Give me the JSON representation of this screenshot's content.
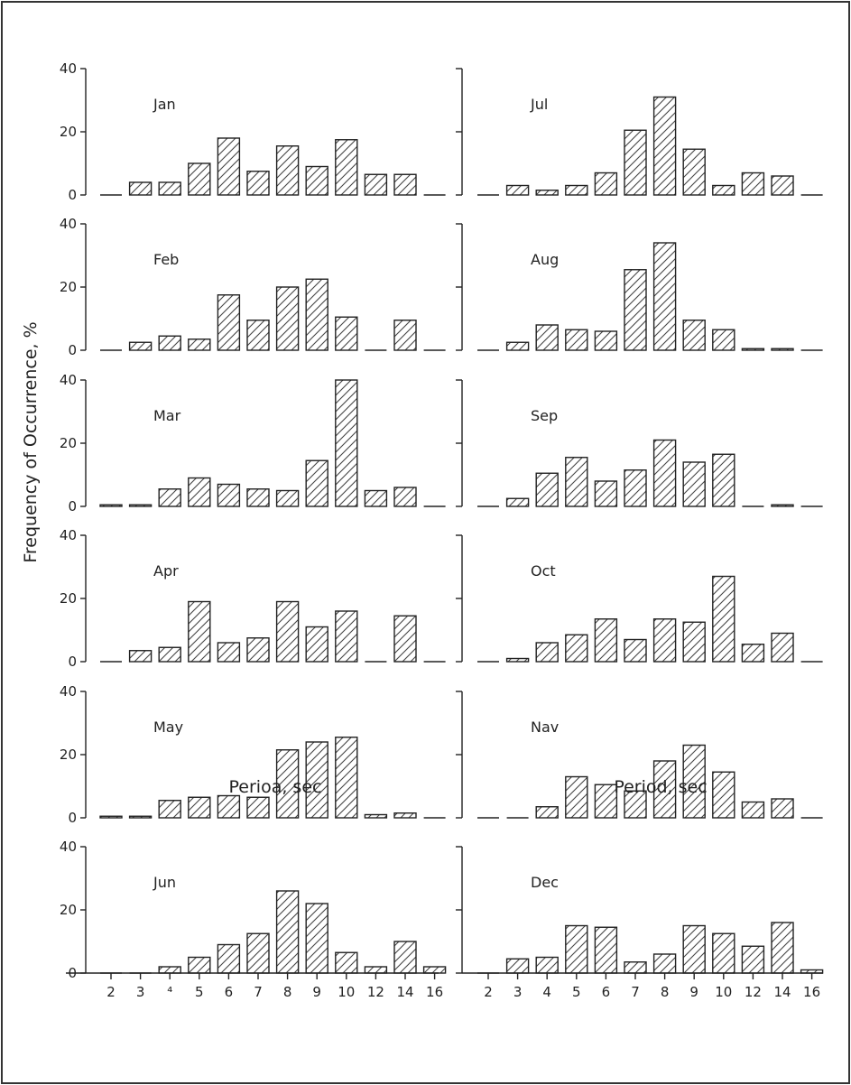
{
  "chart_data": {
    "type": "bar",
    "ylabel": "Frequency of Occurrence, %",
    "xlabels": [
      "Perioa, sec",
      "Period, sec"
    ],
    "ylim": [
      0,
      40
    ],
    "yticks": [
      "0",
      "20",
      "40"
    ],
    "categories": [
      "2",
      "3",
      "4",
      "5",
      "6",
      "7",
      "8",
      "9",
      "10",
      "12",
      "14",
      "16"
    ],
    "left_categories": [
      "2",
      "3",
      "⁴",
      "5",
      "6",
      "7",
      "8",
      "9",
      "10",
      "12",
      "14",
      "16"
    ],
    "right_categories": [
      "2",
      "3",
      "4",
      "5",
      "6",
      "7",
      "8",
      "9",
      "10",
      "12",
      "14",
      "16"
    ],
    "grid": false,
    "panels": [
      {
        "month": "Jan",
        "values": [
          0,
          4,
          4,
          10,
          18,
          7.5,
          15.5,
          9,
          17.5,
          6.5,
          6.5,
          0
        ]
      },
      {
        "month": "Jul",
        "values": [
          0,
          3,
          1.5,
          3,
          7,
          20.5,
          31,
          14.5,
          3,
          7,
          6,
          0
        ]
      },
      {
        "month": "Feb",
        "values": [
          0,
          2.5,
          4.5,
          3.5,
          17.5,
          9.5,
          20,
          22.5,
          10.5,
          0,
          9.5,
          0
        ]
      },
      {
        "month": "Aug",
        "values": [
          0,
          2.5,
          8,
          6.5,
          6,
          25.5,
          34,
          9.5,
          6.5,
          0.5,
          0.5,
          0
        ]
      },
      {
        "month": "Mar",
        "values": [
          0.5,
          0.5,
          5.5,
          9,
          7,
          5.5,
          5,
          14.5,
          40,
          5,
          6,
          0
        ]
      },
      {
        "month": "Sep",
        "values": [
          0,
          2.5,
          10.5,
          15.5,
          8,
          11.5,
          21,
          14,
          16.5,
          0,
          0.5,
          0
        ]
      },
      {
        "month": "Apr",
        "values": [
          0,
          3.5,
          4.5,
          19,
          6,
          7.5,
          19,
          11,
          16,
          0,
          14.5,
          0
        ]
      },
      {
        "month": "Oct",
        "values": [
          0,
          1,
          6,
          8.5,
          13.5,
          7,
          13.5,
          12.5,
          27,
          5.5,
          9,
          0
        ]
      },
      {
        "month": "May",
        "values": [
          0.5,
          0.5,
          5.5,
          6.5,
          7,
          6.5,
          21.5,
          24,
          25.5,
          1,
          1.5,
          0
        ]
      },
      {
        "month": "Nav",
        "values": [
          0,
          0,
          3.5,
          13,
          10.5,
          8.5,
          18,
          23,
          14.5,
          5,
          6,
          0
        ]
      },
      {
        "month": "Jun",
        "values": [
          0,
          0,
          2,
          5,
          9,
          12.5,
          26,
          22,
          6.5,
          2,
          10,
          2
        ]
      },
      {
        "month": "Dec",
        "values": [
          0,
          4.5,
          5,
          15,
          14.5,
          3.5,
          6,
          15,
          12.5,
          8.5,
          16,
          1
        ]
      }
    ]
  }
}
